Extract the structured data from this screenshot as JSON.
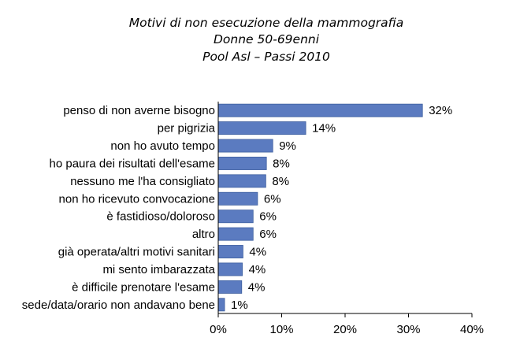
{
  "chart_data": {
    "type": "bar",
    "orientation": "horizontal",
    "title_lines": [
      "Motivi di non esecuzione della mammografia",
      "Donne 50-69enni",
      "Pool Asl – Passi 2010"
    ],
    "categories": [
      "penso di non averne bisogno",
      "per pigrizia",
      "non ho avuto tempo",
      "ho paura dei risultati dell'esame",
      "nessuno me l'ha consigliato",
      "non ho ricevuto convocazione",
      "è fastidioso/doloroso",
      "altro",
      "già operata/altri motivi sanitari",
      "mi sento imbarazzata",
      "è difficile prenotare l'esame",
      "sede/data/orario non andavano bene"
    ],
    "values": [
      32.2,
      13.8,
      8.6,
      7.6,
      7.5,
      6.2,
      5.5,
      5.5,
      3.9,
      3.8,
      3.7,
      1.0
    ],
    "value_labels": [
      "32%",
      "14%",
      "9%",
      "8%",
      "8%",
      "6%",
      "6%",
      "6%",
      "4%",
      "4%",
      "4%",
      "1%"
    ],
    "xlim": [
      0,
      40
    ],
    "xticks": [
      "0%",
      "10%",
      "20%",
      "30%",
      "40%"
    ],
    "xlabel": "",
    "ylabel": "",
    "grid": false,
    "legend": "none",
    "bar_color": "#5b7bc0"
  }
}
